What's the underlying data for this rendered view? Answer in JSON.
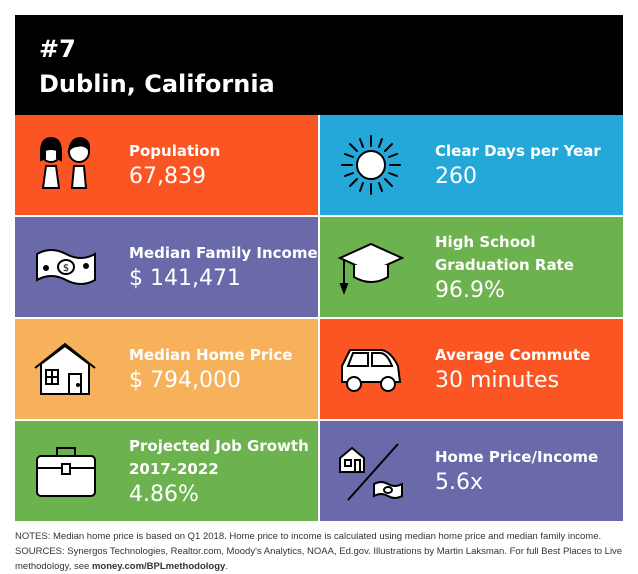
{
  "header": {
    "rank": "#7",
    "city": "Dublin, California"
  },
  "colors": {
    "orange": "#fa5523",
    "blue": "#23a8d9",
    "purple": "#6a6aab",
    "green": "#6cb24e",
    "tan": "#f7b15a"
  },
  "tiles": [
    {
      "label": "Population",
      "value": "67,839",
      "icon": "people-icon",
      "color": "orange"
    },
    {
      "label": "Clear Days per Year",
      "value": "260",
      "icon": "sun-icon",
      "color": "blue"
    },
    {
      "label": "Median Family Income",
      "value": "$ 141,471",
      "icon": "money-icon",
      "color": "purple"
    },
    {
      "label": "High School Graduation Rate",
      "value": "96.9%",
      "icon": "graduation-cap-icon",
      "color": "green"
    },
    {
      "label": "Median Home Price",
      "value": "$ 794,000",
      "icon": "house-icon",
      "color": "tan"
    },
    {
      "label": "Average Commute",
      "value": "30 minutes",
      "icon": "car-icon",
      "color": "orange"
    },
    {
      "label": "Projected Job Growth 2017-2022",
      "value": "4.86%",
      "icon": "briefcase-icon",
      "color": "green"
    },
    {
      "label": "Home Price/Income",
      "value": "5.6x",
      "icon": "house-over-money-icon",
      "color": "purple"
    }
  ],
  "notes": {
    "text": "NOTES: Median home price is based on Q1 2018. Home price to income is calculated using median home price and median family income. SOURCES: Synergos Technologies, Realtor.com, Moody's Analytics, NOAA, Ed.gov. Illustrations by Martin Laksman. For full Best Places to Live methodology, see ",
    "link": "money.com/BPLmethodology",
    "end": "."
  }
}
